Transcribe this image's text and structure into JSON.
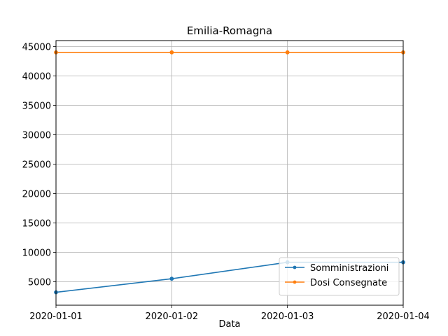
{
  "chart_data": {
    "type": "line",
    "title": "Emilia-Romagna",
    "xlabel": "Data",
    "ylabel": "",
    "x": [
      "2020-01-01",
      "2020-01-02",
      "2020-01-03",
      "2020-01-04"
    ],
    "ylim": [
      1000,
      46000
    ],
    "yticks": [
      5000,
      10000,
      15000,
      20000,
      25000,
      30000,
      35000,
      40000,
      45000
    ],
    "grid": true,
    "legend_position": "lower-right",
    "series": [
      {
        "name": "Somministrazioni",
        "color": "#1f77b4",
        "marker": "circle",
        "values": [
          3200,
          5500,
          8300,
          8300
        ]
      },
      {
        "name": "Dosi Consegnate",
        "color": "#ff7f0e",
        "marker": "circle",
        "values": [
          44000,
          44000,
          44000,
          44000
        ]
      }
    ]
  }
}
